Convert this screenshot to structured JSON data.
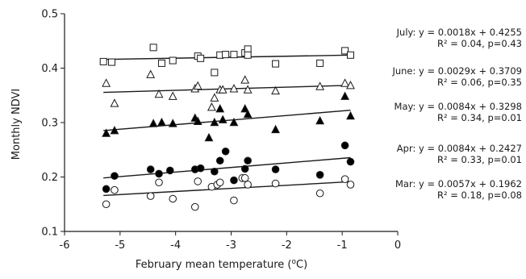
{
  "chart_data": {
    "type": "scatter",
    "xlabel": "February mean temperature (",
    "xlabel_sup": "o",
    "xlabel_tail": "C)",
    "ylabel": "Monthly NDVI",
    "xlim": [
      -6,
      0
    ],
    "ylim": [
      0.1,
      0.5
    ],
    "x_ticks": [
      -6,
      -5,
      -4,
      -3,
      -2,
      -1,
      0
    ],
    "x_tick_labels": [
      "-6",
      "-5",
      "-4",
      "-3",
      "-2",
      "-1",
      "0"
    ],
    "y_ticks": [
      0.1,
      0.2,
      0.3,
      0.4,
      0.5
    ],
    "y_tick_labels": [
      "0.1",
      "0.2",
      "0.3",
      "0.4",
      "0.5"
    ],
    "grid": false,
    "series": [
      {
        "name": "July",
        "marker": "open-square",
        "fit": {
          "slope": 0.0018,
          "intercept": 0.4255
        },
        "equation": "July: y = 0.0018x + 0.4255",
        "stats": "R² = 0.04, p=0.43",
        "points": [
          [
            -5.3,
            0.412
          ],
          [
            -5.15,
            0.411
          ],
          [
            -4.4,
            0.438
          ],
          [
            -4.25,
            0.409
          ],
          [
            -4.05,
            0.414
          ],
          [
            -3.6,
            0.422
          ],
          [
            -3.55,
            0.418
          ],
          [
            -3.3,
            0.392
          ],
          [
            -3.2,
            0.424
          ],
          [
            -3.1,
            0.425
          ],
          [
            -2.95,
            0.425
          ],
          [
            -2.75,
            0.428
          ],
          [
            -2.7,
            0.435
          ],
          [
            -2.7,
            0.424
          ],
          [
            -2.2,
            0.408
          ],
          [
            -1.4,
            0.409
          ],
          [
            -0.95,
            0.432
          ],
          [
            -0.85,
            0.424
          ]
        ]
      },
      {
        "name": "June",
        "marker": "open-triangle",
        "fit": {
          "slope": 0.0029,
          "intercept": 0.3709
        },
        "equation": "June: y = 0.0029x + 0.3709",
        "stats": "R² = 0.06, p=0.35",
        "points": [
          [
            -5.25,
            0.372
          ],
          [
            -5.1,
            0.335
          ],
          [
            -4.45,
            0.388
          ],
          [
            -4.3,
            0.352
          ],
          [
            -4.05,
            0.348
          ],
          [
            -3.65,
            0.362
          ],
          [
            -3.6,
            0.367
          ],
          [
            -3.35,
            0.328
          ],
          [
            -3.3,
            0.345
          ],
          [
            -3.2,
            0.36
          ],
          [
            -3.15,
            0.36
          ],
          [
            -2.95,
            0.362
          ],
          [
            -2.75,
            0.378
          ],
          [
            -2.7,
            0.36
          ],
          [
            -2.2,
            0.358
          ],
          [
            -1.4,
            0.366
          ],
          [
            -0.95,
            0.372
          ],
          [
            -0.85,
            0.368
          ]
        ]
      },
      {
        "name": "May",
        "marker": "filled-triangle",
        "fit": {
          "slope": 0.0084,
          "intercept": 0.3298
        },
        "equation": "May: y = 0.0084x + 0.3298",
        "stats": "R² = 0.34, p=0.01",
        "points": [
          [
            -5.25,
            0.28
          ],
          [
            -5.1,
            0.285
          ],
          [
            -4.4,
            0.298
          ],
          [
            -4.25,
            0.3
          ],
          [
            -4.05,
            0.298
          ],
          [
            -3.65,
            0.308
          ],
          [
            -3.6,
            0.302
          ],
          [
            -3.4,
            0.272
          ],
          [
            -3.3,
            0.3
          ],
          [
            -3.2,
            0.325
          ],
          [
            -3.15,
            0.305
          ],
          [
            -2.95,
            0.3
          ],
          [
            -2.75,
            0.325
          ],
          [
            -2.7,
            0.315
          ],
          [
            -2.2,
            0.287
          ],
          [
            -1.4,
            0.303
          ],
          [
            -0.95,
            0.348
          ],
          [
            -0.85,
            0.312
          ]
        ]
      },
      {
        "name": "Apr",
        "marker": "filled-circle",
        "fit": {
          "slope": 0.0084,
          "intercept": 0.2427
        },
        "equation": "Apr: y = 0.0084x + 0.2427",
        "stats": "R² = 0.33, p=0.01",
        "points": [
          [
            -5.25,
            0.178
          ],
          [
            -5.1,
            0.202
          ],
          [
            -4.45,
            0.214
          ],
          [
            -4.3,
            0.206
          ],
          [
            -4.1,
            0.212
          ],
          [
            -3.65,
            0.214
          ],
          [
            -3.55,
            0.216
          ],
          [
            -3.3,
            0.21
          ],
          [
            -3.2,
            0.23
          ],
          [
            -3.1,
            0.247
          ],
          [
            -2.95,
            0.194
          ],
          [
            -2.75,
            0.215
          ],
          [
            -2.7,
            0.23
          ],
          [
            -2.2,
            0.214
          ],
          [
            -1.4,
            0.204
          ],
          [
            -0.95,
            0.258
          ],
          [
            -0.85,
            0.228
          ]
        ]
      },
      {
        "name": "Mar",
        "marker": "open-circle",
        "fit": {
          "slope": 0.0057,
          "intercept": 0.1962
        },
        "equation": "Mar: y = 0.0057x + 0.1962",
        "stats": "R² = 0.18, p=0.08",
        "points": [
          [
            -5.25,
            0.15
          ],
          [
            -5.1,
            0.176
          ],
          [
            -4.45,
            0.165
          ],
          [
            -4.3,
            0.19
          ],
          [
            -4.05,
            0.16
          ],
          [
            -3.65,
            0.145
          ],
          [
            -3.6,
            0.192
          ],
          [
            -3.35,
            0.182
          ],
          [
            -3.25,
            0.186
          ],
          [
            -3.2,
            0.19
          ],
          [
            -2.95,
            0.157
          ],
          [
            -2.8,
            0.198
          ],
          [
            -2.75,
            0.198
          ],
          [
            -2.7,
            0.186
          ],
          [
            -2.2,
            0.188
          ],
          [
            -1.4,
            0.17
          ],
          [
            -0.95,
            0.196
          ],
          [
            -0.85,
            0.186
          ]
        ]
      }
    ]
  }
}
